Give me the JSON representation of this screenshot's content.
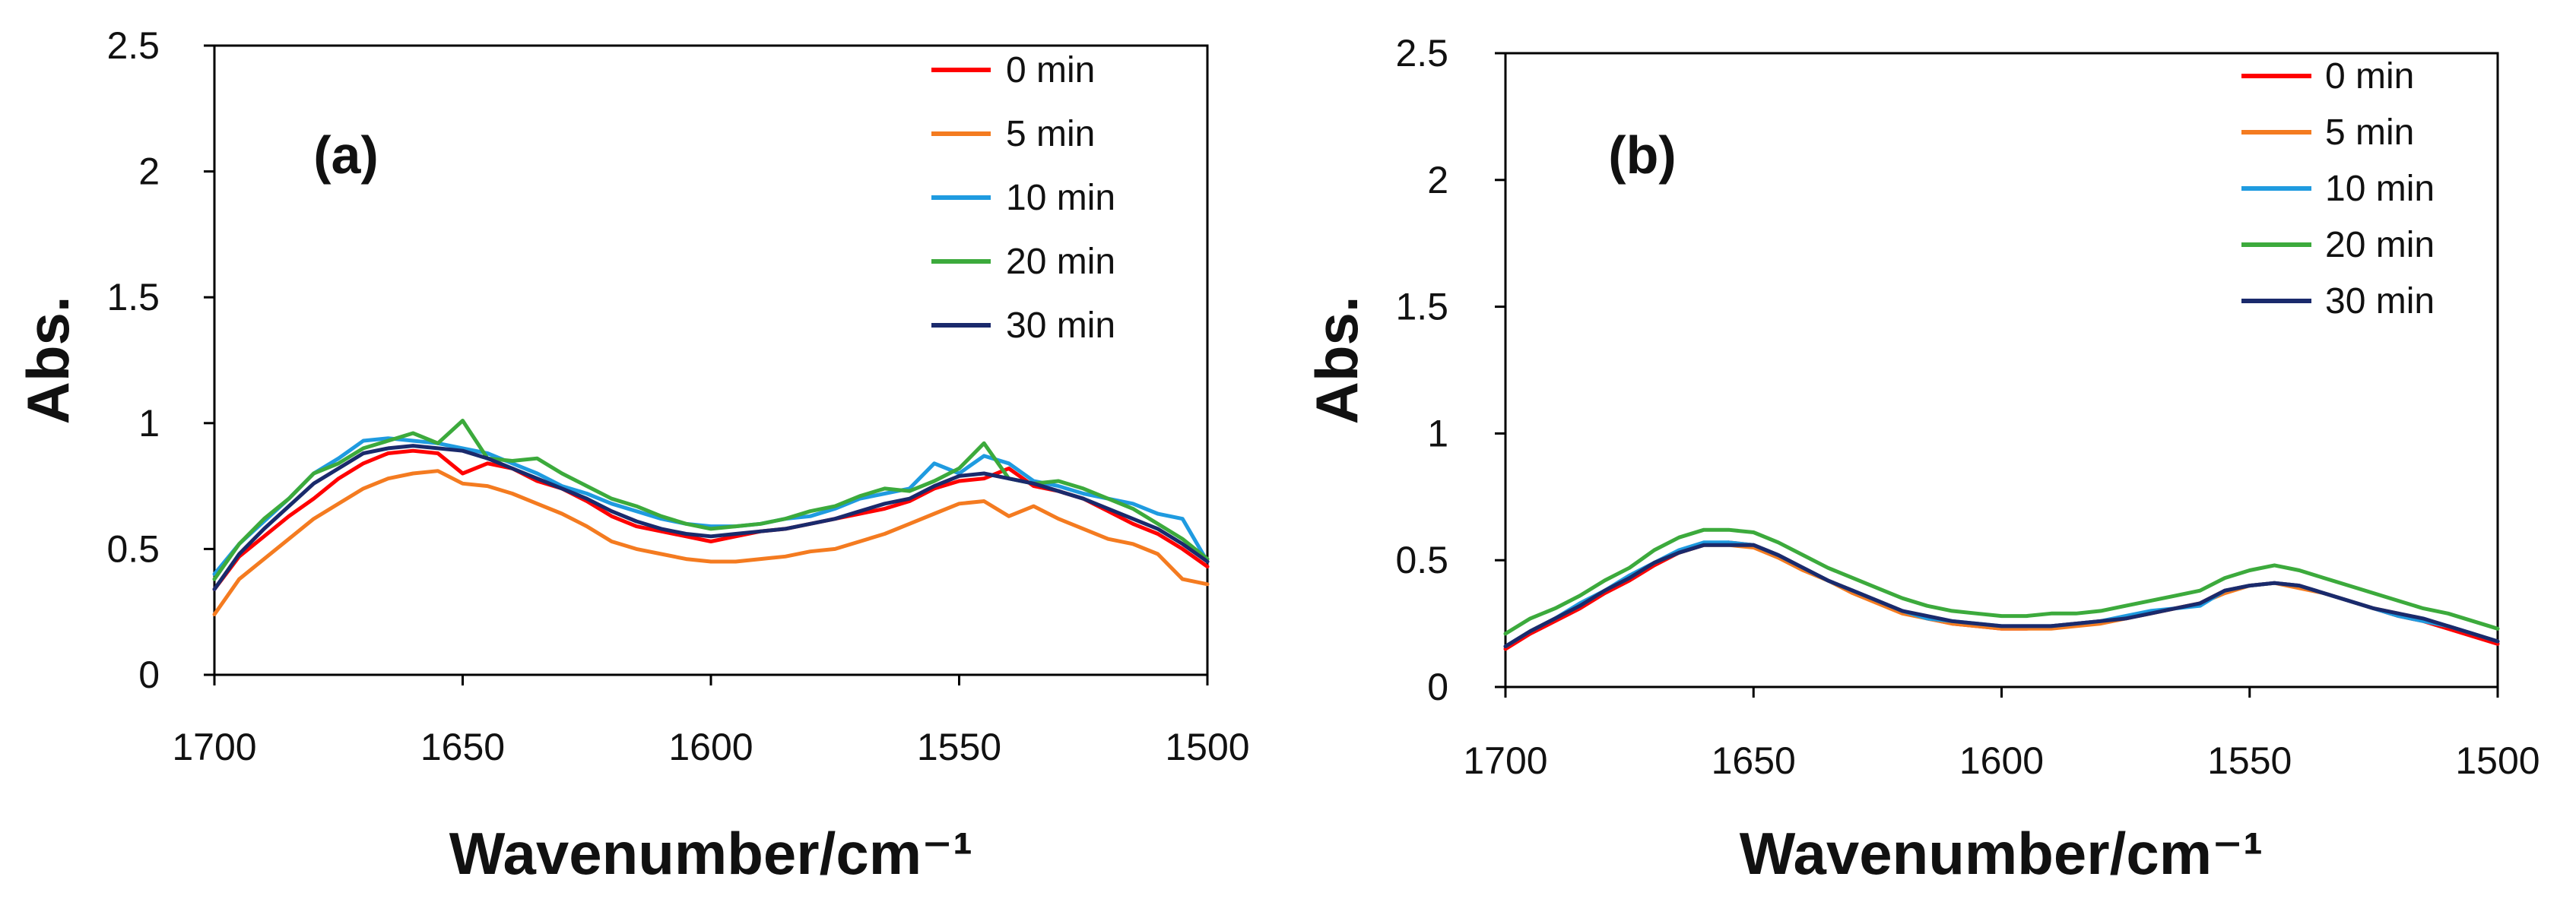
{
  "chart_data": [
    {
      "type": "line",
      "panel_label": "(a)",
      "xlabel": "Wavenumber/cm⁻¹",
      "ylabel": "Abs.",
      "xlim": [
        1700,
        1500
      ],
      "ylim": [
        0,
        2.5
      ],
      "x_ticks": [
        "1700",
        "1650",
        "1600",
        "1550",
        "1500"
      ],
      "y_ticks": [
        "0",
        "0.5",
        "1",
        "1.5",
        "2",
        "2.5"
      ],
      "grid": false,
      "legend_position": "top-right",
      "x": [
        1700,
        1695,
        1690,
        1685,
        1680,
        1675,
        1670,
        1665,
        1660,
        1655,
        1650,
        1645,
        1640,
        1635,
        1630,
        1625,
        1620,
        1615,
        1610,
        1605,
        1600,
        1595,
        1590,
        1585,
        1580,
        1575,
        1570,
        1565,
        1560,
        1555,
        1550,
        1545,
        1540,
        1535,
        1530,
        1525,
        1520,
        1515,
        1510,
        1505,
        1500
      ],
      "series": [
        {
          "name": "0 min",
          "color": "#ff0000",
          "values": [
            0.34,
            0.47,
            0.55,
            0.63,
            0.7,
            0.78,
            0.84,
            0.88,
            0.89,
            0.88,
            0.8,
            0.84,
            0.82,
            0.77,
            0.74,
            0.69,
            0.63,
            0.59,
            0.57,
            0.55,
            0.53,
            0.55,
            0.57,
            0.58,
            0.6,
            0.62,
            0.64,
            0.66,
            0.69,
            0.74,
            0.77,
            0.78,
            0.82,
            0.75,
            0.73,
            0.7,
            0.65,
            0.6,
            0.56,
            0.5,
            0.43
          ]
        },
        {
          "name": "5 min",
          "color": "#f47b20",
          "values": [
            0.24,
            0.38,
            0.46,
            0.54,
            0.62,
            0.68,
            0.74,
            0.78,
            0.8,
            0.81,
            0.76,
            0.75,
            0.72,
            0.68,
            0.64,
            0.59,
            0.53,
            0.5,
            0.48,
            0.46,
            0.45,
            0.45,
            0.46,
            0.47,
            0.49,
            0.5,
            0.53,
            0.56,
            0.6,
            0.64,
            0.68,
            0.69,
            0.63,
            0.67,
            0.62,
            0.58,
            0.54,
            0.52,
            0.48,
            0.38,
            0.36
          ]
        },
        {
          "name": "10 min",
          "color": "#1f9be0",
          "values": [
            0.4,
            0.52,
            0.61,
            0.7,
            0.8,
            0.86,
            0.93,
            0.94,
            0.93,
            0.92,
            0.9,
            0.88,
            0.84,
            0.8,
            0.75,
            0.72,
            0.68,
            0.65,
            0.62,
            0.6,
            0.59,
            0.59,
            0.6,
            0.62,
            0.63,
            0.66,
            0.7,
            0.72,
            0.74,
            0.84,
            0.8,
            0.87,
            0.84,
            0.77,
            0.75,
            0.72,
            0.7,
            0.68,
            0.64,
            0.62,
            0.45
          ]
        },
        {
          "name": "20 min",
          "color": "#3caa3c",
          "values": [
            0.38,
            0.52,
            0.62,
            0.7,
            0.8,
            0.84,
            0.9,
            0.93,
            0.96,
            0.92,
            1.01,
            0.86,
            0.85,
            0.86,
            0.8,
            0.75,
            0.7,
            0.67,
            0.63,
            0.6,
            0.58,
            0.59,
            0.6,
            0.62,
            0.65,
            0.67,
            0.71,
            0.74,
            0.73,
            0.77,
            0.82,
            0.92,
            0.78,
            0.76,
            0.77,
            0.74,
            0.7,
            0.66,
            0.6,
            0.54,
            0.46
          ]
        },
        {
          "name": "30 min",
          "color": "#1a2a6c",
          "values": [
            0.34,
            0.48,
            0.58,
            0.67,
            0.76,
            0.82,
            0.88,
            0.9,
            0.91,
            0.9,
            0.89,
            0.86,
            0.82,
            0.78,
            0.74,
            0.7,
            0.65,
            0.61,
            0.58,
            0.56,
            0.55,
            0.56,
            0.57,
            0.58,
            0.6,
            0.62,
            0.65,
            0.68,
            0.7,
            0.75,
            0.79,
            0.8,
            0.78,
            0.76,
            0.73,
            0.7,
            0.66,
            0.62,
            0.58,
            0.52,
            0.45
          ]
        }
      ]
    },
    {
      "type": "line",
      "panel_label": "(b)",
      "xlabel": "Wavenumber/cm⁻¹",
      "ylabel": "Abs.",
      "xlim": [
        1700,
        1500
      ],
      "ylim": [
        0,
        2.5
      ],
      "x_ticks": [
        "1700",
        "1650",
        "1600",
        "1550",
        "1500"
      ],
      "y_ticks": [
        "0",
        "0.5",
        "1",
        "1.5",
        "2",
        "2.5"
      ],
      "grid": false,
      "legend_position": "top-right",
      "x": [
        1700,
        1695,
        1690,
        1685,
        1680,
        1675,
        1670,
        1665,
        1660,
        1655,
        1650,
        1645,
        1640,
        1635,
        1630,
        1625,
        1620,
        1615,
        1610,
        1605,
        1600,
        1595,
        1590,
        1585,
        1580,
        1575,
        1570,
        1565,
        1560,
        1555,
        1550,
        1545,
        1540,
        1535,
        1530,
        1525,
        1520,
        1515,
        1510,
        1505,
        1500
      ],
      "series": [
        {
          "name": "0 min",
          "color": "#ff0000",
          "values": [
            0.15,
            0.21,
            0.26,
            0.31,
            0.37,
            0.42,
            0.48,
            0.53,
            0.56,
            0.57,
            0.56,
            0.52,
            0.47,
            0.42,
            0.38,
            0.34,
            0.3,
            0.27,
            0.25,
            0.24,
            0.23,
            0.23,
            0.24,
            0.25,
            0.26,
            0.27,
            0.29,
            0.31,
            0.33,
            0.38,
            0.4,
            0.41,
            0.4,
            0.37,
            0.34,
            0.31,
            0.28,
            0.26,
            0.23,
            0.2,
            0.17
          ]
        },
        {
          "name": "5 min",
          "color": "#f47b20",
          "values": [
            0.16,
            0.22,
            0.27,
            0.32,
            0.38,
            0.43,
            0.49,
            0.53,
            0.56,
            0.56,
            0.55,
            0.51,
            0.46,
            0.42,
            0.37,
            0.33,
            0.29,
            0.27,
            0.25,
            0.24,
            0.23,
            0.23,
            0.23,
            0.24,
            0.25,
            0.27,
            0.29,
            0.31,
            0.33,
            0.37,
            0.4,
            0.41,
            0.39,
            0.37,
            0.34,
            0.31,
            0.29,
            0.26,
            0.24,
            0.21,
            0.18
          ]
        },
        {
          "name": "10 min",
          "color": "#1f9be0",
          "values": [
            0.16,
            0.22,
            0.27,
            0.33,
            0.38,
            0.44,
            0.49,
            0.54,
            0.57,
            0.57,
            0.56,
            0.52,
            0.47,
            0.42,
            0.38,
            0.34,
            0.3,
            0.27,
            0.26,
            0.25,
            0.24,
            0.24,
            0.24,
            0.25,
            0.26,
            0.28,
            0.3,
            0.31,
            0.32,
            0.38,
            0.4,
            0.41,
            0.4,
            0.37,
            0.34,
            0.31,
            0.28,
            0.26,
            0.24,
            0.21,
            0.18
          ]
        },
        {
          "name": "20 min",
          "color": "#3caa3c",
          "values": [
            0.21,
            0.27,
            0.31,
            0.36,
            0.42,
            0.47,
            0.54,
            0.59,
            0.62,
            0.62,
            0.61,
            0.57,
            0.52,
            0.47,
            0.43,
            0.39,
            0.35,
            0.32,
            0.3,
            0.29,
            0.28,
            0.28,
            0.29,
            0.29,
            0.3,
            0.32,
            0.34,
            0.36,
            0.38,
            0.43,
            0.46,
            0.48,
            0.46,
            0.43,
            0.4,
            0.37,
            0.34,
            0.31,
            0.29,
            0.26,
            0.23
          ]
        },
        {
          "name": "30 min",
          "color": "#1a2a6c",
          "values": [
            0.16,
            0.22,
            0.27,
            0.32,
            0.38,
            0.43,
            0.49,
            0.53,
            0.56,
            0.56,
            0.56,
            0.52,
            0.47,
            0.42,
            0.38,
            0.34,
            0.3,
            0.28,
            0.26,
            0.25,
            0.24,
            0.24,
            0.24,
            0.25,
            0.26,
            0.27,
            0.29,
            0.31,
            0.33,
            0.38,
            0.4,
            0.41,
            0.4,
            0.37,
            0.34,
            0.31,
            0.29,
            0.27,
            0.24,
            0.21,
            0.18
          ]
        }
      ]
    }
  ]
}
